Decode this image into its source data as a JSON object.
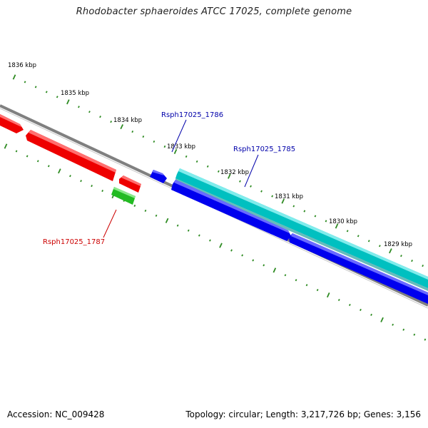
{
  "title": "Rhodobacter sphaeroides ATCC 17025, complete genome",
  "footer": {
    "accession": "Accession: NC_009428",
    "summary": "Topology: circular; Length: 3,217,726 bp; Genes: 3,156"
  },
  "colors": {
    "backbone": "#808080",
    "tick": "#2e8b22",
    "forward_gene": "#00c8c8",
    "reverse_gene": "#0000ee",
    "rrna_gene": "#ee0000",
    "other_gene": "#33cc33",
    "label_blue": "#0000aa",
    "label_red": "#cc0000"
  },
  "kbp_labels": [
    "1836 kbp",
    "1835 kbp",
    "1834 kbp",
    "1833 kbp",
    "1832 kbp",
    "1831 kbp",
    "1830 kbp",
    "1829 kbp"
  ],
  "gene_labels": {
    "g1786": "Rsph17025_1786",
    "g1785": "Rsph17025_1785",
    "g1787": "Rsph17025_1787"
  }
}
